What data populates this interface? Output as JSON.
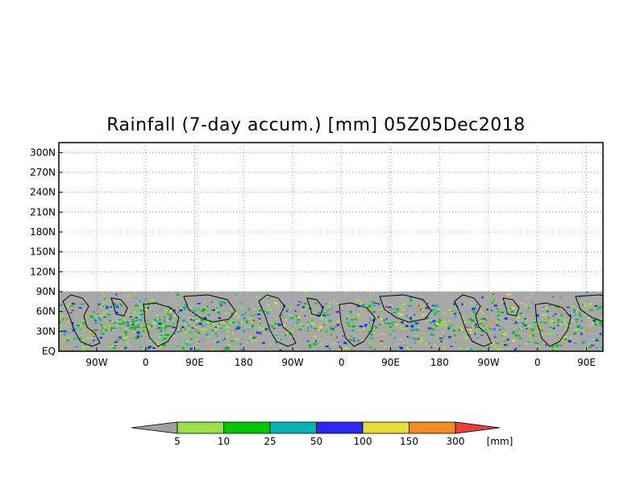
{
  "title": "Rainfall (7-day accum.) [mm] 05Z05Dec2018",
  "map": {
    "lat_ticks": [
      "300N",
      "270N",
      "240N",
      "210N",
      "180N",
      "150N",
      "120N",
      "90N",
      "60N",
      "30N",
      "EQ"
    ],
    "lon_ticks": [
      "90W",
      "0",
      "90E",
      "180",
      "90W",
      "0",
      "90E",
      "180",
      "90W",
      "0",
      "90E"
    ],
    "lat_range": [
      0,
      315
    ],
    "data_lat_max": 90,
    "no_data_color": "#a8a8a8",
    "grid": "dotted"
  },
  "colorbar": {
    "unit": "[mm]",
    "labels": [
      "5",
      "10",
      "25",
      "50",
      "100",
      "150",
      "300"
    ],
    "colors": [
      "#a0a0a0",
      "#9be04a",
      "#00c800",
      "#00b4b4",
      "#2828f0",
      "#e6dc32",
      "#f08c28",
      "#f03c3c"
    ]
  }
}
